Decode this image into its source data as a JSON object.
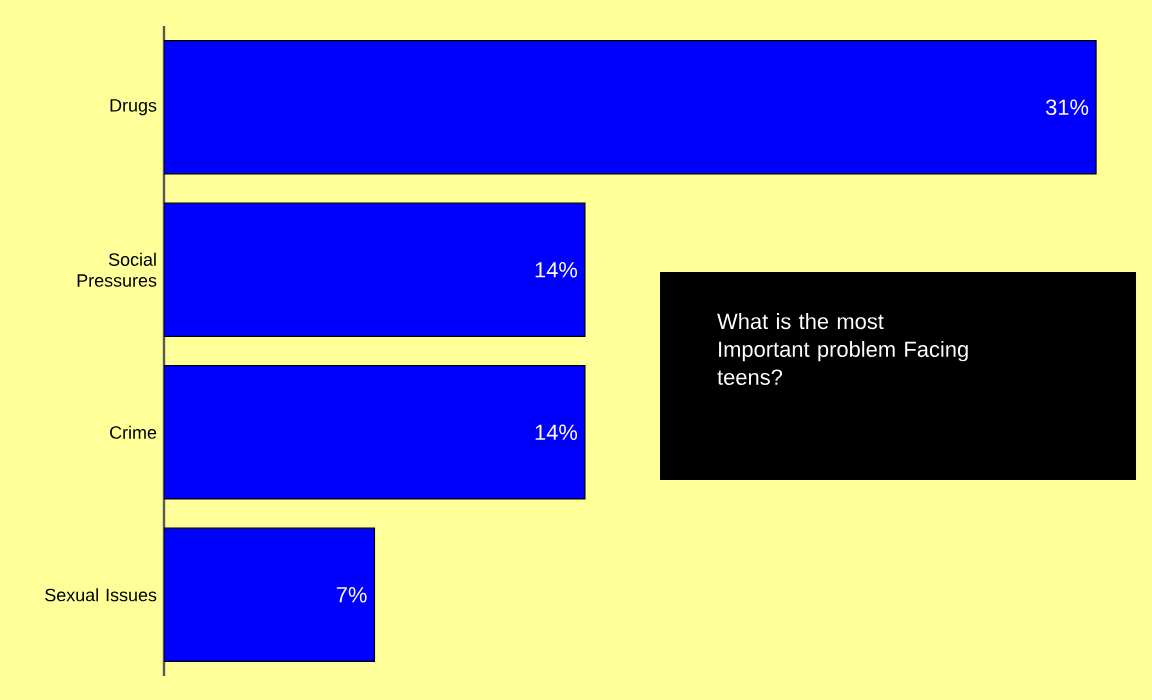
{
  "chart_data": {
    "type": "bar",
    "orientation": "horizontal",
    "title": "What is the most Important problem Facing teens?",
    "categories": [
      "Drugs",
      "Social Pressures",
      "Crime",
      "Sexual Issues"
    ],
    "values": [
      31,
      14,
      14,
      7
    ],
    "value_labels": [
      "31%",
      "14%",
      "14%",
      "7%"
    ],
    "color": "#0000ff"
  }
}
